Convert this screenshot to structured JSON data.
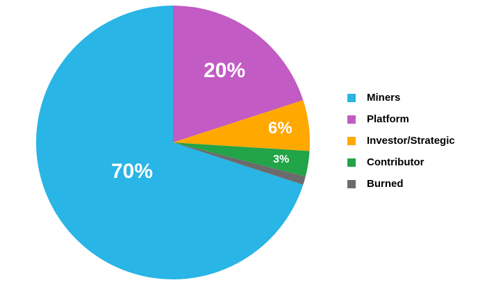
{
  "chart_data": {
    "type": "pie",
    "categories": [
      "Miners",
      "Platform",
      "Investor/Strategic",
      "Contributor",
      "Burned"
    ],
    "values": [
      70,
      20,
      6,
      3,
      1
    ],
    "value_labels": [
      "70%",
      "20%",
      "6%",
      "3%",
      null
    ],
    "colors": [
      "#29b5e5",
      "#c25bc4",
      "#ffa800",
      "#22a448",
      "#6b6b6b"
    ],
    "legend": "right"
  }
}
